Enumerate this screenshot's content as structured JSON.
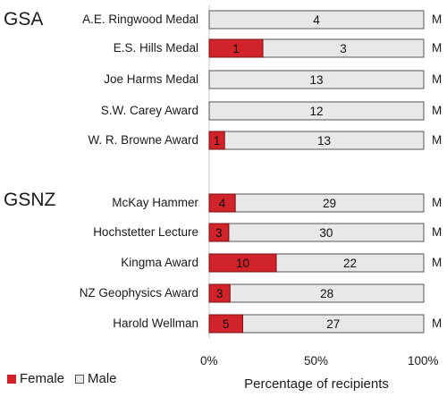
{
  "chart_data": {
    "type": "bar",
    "orientation": "horizontal",
    "stacked": "percent",
    "groups": [
      {
        "name": "GSA",
        "categories": [
          "A.E. Ringwood Medal",
          "E.S. Hills Medal",
          "Joe Harms Medal",
          "S.W. Carey Award",
          "W. R. Browne Award"
        ],
        "female": [
          0,
          1,
          0,
          0,
          1
        ],
        "male": [
          4,
          3,
          13,
          12,
          13
        ],
        "female_labels": [
          "",
          "1",
          "",
          "",
          "1"
        ],
        "male_labels": [
          "4",
          "3",
          "13",
          "12",
          "13"
        ],
        "marker": [
          "M",
          "M",
          "M",
          "M",
          "M"
        ]
      },
      {
        "name": "GSNZ",
        "categories": [
          "McKay Hammer",
          "Hochstetter Lecture",
          "Kingma Award",
          "NZ Geophysics Award",
          "Harold Wellman"
        ],
        "female": [
          4,
          3,
          10,
          3,
          5
        ],
        "male": [
          29,
          30,
          22,
          28,
          27
        ],
        "female_labels": [
          "4",
          "3",
          "10",
          "3",
          "5"
        ],
        "male_labels": [
          "29",
          "30",
          "22",
          "28",
          "27"
        ],
        "marker": [
          "M",
          "M",
          "M",
          "",
          "M"
        ]
      }
    ],
    "series": [
      {
        "name": "Female",
        "color": "#d0232a"
      },
      {
        "name": "Male",
        "color": "#e8e8e8"
      }
    ],
    "x_ticks": [
      "0%",
      "50%",
      "100%"
    ],
    "xlabel": "Percentage of recipients",
    "xlim": [
      0,
      100
    ],
    "legend_position": "bottom-left",
    "grid": false
  }
}
